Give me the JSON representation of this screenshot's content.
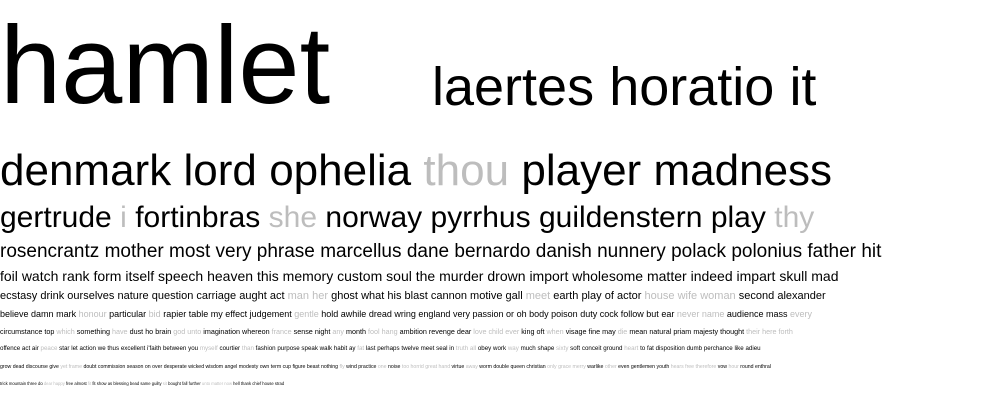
{
  "colors": {
    "dark": "#000000",
    "light": "#bdbdbd"
  },
  "rows": [
    {
      "fs": 110,
      "top": 2,
      "words": [
        {
          "t": "hamlet",
          "c": "dark"
        }
      ]
    },
    {
      "fs": 54,
      "top": 56,
      "left": 432,
      "words": [
        {
          "t": "laertes",
          "c": "dark"
        },
        {
          "t": "horatio",
          "c": "dark"
        },
        {
          "t": "it",
          "c": "dark"
        }
      ]
    },
    {
      "fs": 44,
      "top": 146,
      "words": [
        {
          "t": "denmark",
          "c": "dark"
        },
        {
          "t": "lord",
          "c": "dark"
        },
        {
          "t": "ophelia",
          "c": "dark"
        },
        {
          "t": "thou",
          "c": "light"
        },
        {
          "t": "player",
          "c": "dark"
        },
        {
          "t": "madness",
          "c": "dark"
        }
      ]
    },
    {
      "fs": 30,
      "top": 201,
      "words": [
        {
          "t": "gertrude",
          "c": "dark"
        },
        {
          "t": "i",
          "c": "light"
        },
        {
          "t": "fortinbras",
          "c": "dark"
        },
        {
          "t": "she",
          "c": "light"
        },
        {
          "t": "norway",
          "c": "dark"
        },
        {
          "t": "pyrrhus",
          "c": "dark"
        },
        {
          "t": "guildenstern",
          "c": "dark"
        },
        {
          "t": "play",
          "c": "dark"
        },
        {
          "t": "thy",
          "c": "light"
        }
      ]
    },
    {
      "fs": 19,
      "top": 241,
      "words": [
        {
          "t": "rosencrantz",
          "c": "dark"
        },
        {
          "t": "mother",
          "c": "dark"
        },
        {
          "t": "most",
          "c": "dark"
        },
        {
          "t": "very",
          "c": "dark"
        },
        {
          "t": "phrase",
          "c": "dark"
        },
        {
          "t": "marcellus",
          "c": "dark"
        },
        {
          "t": "dane",
          "c": "dark"
        },
        {
          "t": "bernardo",
          "c": "dark"
        },
        {
          "t": "danish",
          "c": "dark"
        },
        {
          "t": "nunnery",
          "c": "dark"
        },
        {
          "t": "polack",
          "c": "dark"
        },
        {
          "t": "polonius",
          "c": "dark"
        },
        {
          "t": "father",
          "c": "dark"
        },
        {
          "t": "hit",
          "c": "dark"
        }
      ]
    },
    {
      "fs": 14,
      "top": 268,
      "words": [
        {
          "t": "foil",
          "c": "dark"
        },
        {
          "t": "watch",
          "c": "dark"
        },
        {
          "t": "rank",
          "c": "dark"
        },
        {
          "t": "form",
          "c": "dark"
        },
        {
          "t": "itself",
          "c": "dark"
        },
        {
          "t": "speech",
          "c": "dark"
        },
        {
          "t": "heaven",
          "c": "dark"
        },
        {
          "t": "this",
          "c": "dark"
        },
        {
          "t": "memory",
          "c": "dark"
        },
        {
          "t": "custom",
          "c": "dark"
        },
        {
          "t": "soul",
          "c": "dark"
        },
        {
          "t": "the",
          "c": "dark"
        },
        {
          "t": "murder",
          "c": "dark"
        },
        {
          "t": "drown",
          "c": "dark"
        },
        {
          "t": "import",
          "c": "dark"
        },
        {
          "t": "wholesome",
          "c": "dark"
        },
        {
          "t": "matter",
          "c": "dark"
        },
        {
          "t": "indeed",
          "c": "dark"
        },
        {
          "t": "impart",
          "c": "dark"
        },
        {
          "t": "skull",
          "c": "dark"
        },
        {
          "t": "mad",
          "c": "dark"
        }
      ]
    },
    {
      "fs": 11,
      "top": 290,
      "words": [
        {
          "t": "ecstasy",
          "c": "dark"
        },
        {
          "t": "drink",
          "c": "dark"
        },
        {
          "t": "ourselves",
          "c": "dark"
        },
        {
          "t": "nature",
          "c": "dark"
        },
        {
          "t": "question",
          "c": "dark"
        },
        {
          "t": "carriage",
          "c": "dark"
        },
        {
          "t": "aught",
          "c": "dark"
        },
        {
          "t": "act",
          "c": "dark"
        },
        {
          "t": "man",
          "c": "light"
        },
        {
          "t": "her",
          "c": "light"
        },
        {
          "t": "ghost",
          "c": "dark"
        },
        {
          "t": "what",
          "c": "dark"
        },
        {
          "t": "his",
          "c": "dark"
        },
        {
          "t": "blast",
          "c": "dark"
        },
        {
          "t": "cannon",
          "c": "dark"
        },
        {
          "t": "motive",
          "c": "dark"
        },
        {
          "t": "gall",
          "c": "dark"
        },
        {
          "t": "meet",
          "c": "light"
        },
        {
          "t": "earth",
          "c": "dark"
        },
        {
          "t": "play",
          "c": "dark"
        },
        {
          "t": "of",
          "c": "dark"
        },
        {
          "t": "actor",
          "c": "dark"
        },
        {
          "t": "house",
          "c": "light"
        },
        {
          "t": "wife",
          "c": "light"
        },
        {
          "t": "woman",
          "c": "light"
        },
        {
          "t": "second",
          "c": "dark"
        },
        {
          "t": "alexander",
          "c": "dark"
        }
      ]
    },
    {
      "fs": 9,
      "top": 309,
      "words": [
        {
          "t": "believe",
          "c": "dark"
        },
        {
          "t": "damn",
          "c": "dark"
        },
        {
          "t": "mark",
          "c": "dark"
        },
        {
          "t": "honour",
          "c": "light"
        },
        {
          "t": "particular",
          "c": "dark"
        },
        {
          "t": "bid",
          "c": "light"
        },
        {
          "t": "rapier",
          "c": "dark"
        },
        {
          "t": "table",
          "c": "dark"
        },
        {
          "t": "my",
          "c": "dark"
        },
        {
          "t": "effect",
          "c": "dark"
        },
        {
          "t": "judgement",
          "c": "dark"
        },
        {
          "t": "gentle",
          "c": "light"
        },
        {
          "t": "hold",
          "c": "dark"
        },
        {
          "t": "awhile",
          "c": "dark"
        },
        {
          "t": "dread",
          "c": "dark"
        },
        {
          "t": "wring",
          "c": "dark"
        },
        {
          "t": "england",
          "c": "dark"
        },
        {
          "t": "very",
          "c": "dark"
        },
        {
          "t": "passion",
          "c": "dark"
        },
        {
          "t": "or",
          "c": "dark"
        },
        {
          "t": "oh",
          "c": "dark"
        },
        {
          "t": "body",
          "c": "dark"
        },
        {
          "t": "poison",
          "c": "dark"
        },
        {
          "t": "duty",
          "c": "dark"
        },
        {
          "t": "cock",
          "c": "dark"
        },
        {
          "t": "follow",
          "c": "dark"
        },
        {
          "t": "but",
          "c": "dark"
        },
        {
          "t": "ear",
          "c": "dark"
        },
        {
          "t": "never",
          "c": "light"
        },
        {
          "t": "name",
          "c": "light"
        },
        {
          "t": "audience",
          "c": "dark"
        },
        {
          "t": "mass",
          "c": "dark"
        },
        {
          "t": "every",
          "c": "light"
        }
      ]
    },
    {
      "fs": 7.2,
      "top": 327,
      "words": [
        {
          "t": "circumstance",
          "c": "dark"
        },
        {
          "t": "top",
          "c": "dark"
        },
        {
          "t": "which",
          "c": "light"
        },
        {
          "t": "something",
          "c": "dark"
        },
        {
          "t": "have",
          "c": "light"
        },
        {
          "t": "dust",
          "c": "dark"
        },
        {
          "t": "ho",
          "c": "dark"
        },
        {
          "t": "brain",
          "c": "dark"
        },
        {
          "t": "god",
          "c": "light"
        },
        {
          "t": "unto",
          "c": "light"
        },
        {
          "t": "imagination",
          "c": "dark"
        },
        {
          "t": "whereon",
          "c": "dark"
        },
        {
          "t": "france",
          "c": "light"
        },
        {
          "t": "sense",
          "c": "dark"
        },
        {
          "t": "night",
          "c": "dark"
        },
        {
          "t": "any",
          "c": "light"
        },
        {
          "t": "month",
          "c": "dark"
        },
        {
          "t": "fool",
          "c": "light"
        },
        {
          "t": "hang",
          "c": "light"
        },
        {
          "t": "ambition",
          "c": "dark"
        },
        {
          "t": "revenge",
          "c": "dark"
        },
        {
          "t": "dear",
          "c": "dark"
        },
        {
          "t": "love",
          "c": "light"
        },
        {
          "t": "child",
          "c": "light"
        },
        {
          "t": "ever",
          "c": "light"
        },
        {
          "t": "king",
          "c": "dark"
        },
        {
          "t": "oft",
          "c": "dark"
        },
        {
          "t": "when",
          "c": "light"
        },
        {
          "t": "visage",
          "c": "dark"
        },
        {
          "t": "fine",
          "c": "dark"
        },
        {
          "t": "may",
          "c": "dark"
        },
        {
          "t": "die",
          "c": "light"
        },
        {
          "t": "mean",
          "c": "dark"
        },
        {
          "t": "natural",
          "c": "dark"
        },
        {
          "t": "priam",
          "c": "dark"
        },
        {
          "t": "majesty",
          "c": "dark"
        },
        {
          "t": "thought",
          "c": "dark"
        },
        {
          "t": "their",
          "c": "light"
        },
        {
          "t": "here",
          "c": "light"
        },
        {
          "t": "forth",
          "c": "light"
        }
      ]
    },
    {
      "fs": 6.2,
      "top": 345,
      "words": [
        {
          "t": "offence",
          "c": "dark"
        },
        {
          "t": "act",
          "c": "dark"
        },
        {
          "t": "air",
          "c": "dark"
        },
        {
          "t": "peace",
          "c": "light"
        },
        {
          "t": "star",
          "c": "dark"
        },
        {
          "t": "let",
          "c": "dark"
        },
        {
          "t": "action",
          "c": "dark"
        },
        {
          "t": "we",
          "c": "dark"
        },
        {
          "t": "thus",
          "c": "dark"
        },
        {
          "t": "excellent",
          "c": "dark"
        },
        {
          "t": "i'faith",
          "c": "dark"
        },
        {
          "t": "between",
          "c": "dark"
        },
        {
          "t": "you",
          "c": "dark"
        },
        {
          "t": "myself",
          "c": "light"
        },
        {
          "t": "courtier",
          "c": "dark"
        },
        {
          "t": "than",
          "c": "light"
        },
        {
          "t": "fashion",
          "c": "dark"
        },
        {
          "t": "purpose",
          "c": "dark"
        },
        {
          "t": "speak",
          "c": "dark"
        },
        {
          "t": "walk",
          "c": "dark"
        },
        {
          "t": "habit",
          "c": "dark"
        },
        {
          "t": "ay",
          "c": "dark"
        },
        {
          "t": "fat",
          "c": "light"
        },
        {
          "t": "last",
          "c": "dark"
        },
        {
          "t": "perhaps",
          "c": "dark"
        },
        {
          "t": "twelve",
          "c": "dark"
        },
        {
          "t": "meet",
          "c": "dark"
        },
        {
          "t": "seal",
          "c": "dark"
        },
        {
          "t": "in",
          "c": "dark"
        },
        {
          "t": "truth",
          "c": "light"
        },
        {
          "t": "all",
          "c": "light"
        },
        {
          "t": "obey",
          "c": "dark"
        },
        {
          "t": "work",
          "c": "dark"
        },
        {
          "t": "way",
          "c": "light"
        },
        {
          "t": "much",
          "c": "dark"
        },
        {
          "t": "shape",
          "c": "dark"
        },
        {
          "t": "sixty",
          "c": "light"
        },
        {
          "t": "soft",
          "c": "dark"
        },
        {
          "t": "conceit",
          "c": "dark"
        },
        {
          "t": "ground",
          "c": "dark"
        },
        {
          "t": "heart",
          "c": "light"
        },
        {
          "t": "to",
          "c": "dark"
        },
        {
          "t": "fat",
          "c": "dark"
        },
        {
          "t": "disposition",
          "c": "dark"
        },
        {
          "t": "dumb",
          "c": "dark"
        },
        {
          "t": "perchance",
          "c": "dark"
        },
        {
          "t": "like",
          "c": "dark"
        },
        {
          "t": "adieu",
          "c": "dark"
        }
      ]
    },
    {
      "fs": 5.2,
      "top": 364,
      "words": [
        {
          "t": "grow",
          "c": "dark"
        },
        {
          "t": "dead",
          "c": "dark"
        },
        {
          "t": "discourse",
          "c": "dark"
        },
        {
          "t": "give",
          "c": "dark"
        },
        {
          "t": "yet",
          "c": "light"
        },
        {
          "t": "frame",
          "c": "light"
        },
        {
          "t": "doubt",
          "c": "dark"
        },
        {
          "t": "commission",
          "c": "dark"
        },
        {
          "t": "season",
          "c": "dark"
        },
        {
          "t": "on",
          "c": "dark"
        },
        {
          "t": "over",
          "c": "dark"
        },
        {
          "t": "desperate",
          "c": "dark"
        },
        {
          "t": "wicked",
          "c": "dark"
        },
        {
          "t": "wisdom",
          "c": "dark"
        },
        {
          "t": "angel",
          "c": "dark"
        },
        {
          "t": "modesty",
          "c": "dark"
        },
        {
          "t": "own",
          "c": "dark"
        },
        {
          "t": "term",
          "c": "dark"
        },
        {
          "t": "cup",
          "c": "dark"
        },
        {
          "t": "figure",
          "c": "dark"
        },
        {
          "t": "beast",
          "c": "dark"
        },
        {
          "t": "nothing",
          "c": "dark"
        },
        {
          "t": "fly",
          "c": "light"
        },
        {
          "t": "wind",
          "c": "dark"
        },
        {
          "t": "practice",
          "c": "dark"
        },
        {
          "t": "one",
          "c": "light"
        },
        {
          "t": "noise",
          "c": "dark"
        },
        {
          "t": "too",
          "c": "light"
        },
        {
          "t": "horrid",
          "c": "light"
        },
        {
          "t": "great",
          "c": "light"
        },
        {
          "t": "hand",
          "c": "light"
        },
        {
          "t": "virtue",
          "c": "dark"
        },
        {
          "t": "away",
          "c": "light"
        },
        {
          "t": "worm",
          "c": "dark"
        },
        {
          "t": "double",
          "c": "dark"
        },
        {
          "t": "queen",
          "c": "dark"
        },
        {
          "t": "christian",
          "c": "dark"
        },
        {
          "t": "only",
          "c": "light"
        },
        {
          "t": "grace",
          "c": "light"
        },
        {
          "t": "merry",
          "c": "light"
        },
        {
          "t": "warlike",
          "c": "dark"
        },
        {
          "t": "other",
          "c": "light"
        },
        {
          "t": "even",
          "c": "dark"
        },
        {
          "t": "gentlemen",
          "c": "dark"
        },
        {
          "t": "youth",
          "c": "dark"
        },
        {
          "t": "hears",
          "c": "light"
        },
        {
          "t": "free",
          "c": "light"
        },
        {
          "t": "therefore",
          "c": "light"
        },
        {
          "t": "vow",
          "c": "dark"
        },
        {
          "t": "hour",
          "c": "light"
        },
        {
          "t": "round",
          "c": "dark"
        },
        {
          "t": "enthral",
          "c": "dark"
        }
      ]
    },
    {
      "fs": 4.2,
      "top": 381,
      "words": [
        {
          "t": "trick",
          "c": "dark"
        },
        {
          "t": "mountain",
          "c": "dark"
        },
        {
          "t": "three",
          "c": "dark"
        },
        {
          "t": "do",
          "c": "dark"
        },
        {
          "t": "dear",
          "c": "light"
        },
        {
          "t": "happy",
          "c": "light"
        },
        {
          "t": "free",
          "c": "dark"
        },
        {
          "t": "almost",
          "c": "dark"
        },
        {
          "t": "fit",
          "c": "light"
        },
        {
          "t": "fit",
          "c": "dark"
        },
        {
          "t": "show",
          "c": "dark"
        },
        {
          "t": "as",
          "c": "dark"
        },
        {
          "t": "blessing",
          "c": "dark"
        },
        {
          "t": "bead",
          "c": "dark"
        },
        {
          "t": "same",
          "c": "dark"
        },
        {
          "t": "guilty",
          "c": "dark"
        },
        {
          "t": "sit",
          "c": "light"
        },
        {
          "t": "bought",
          "c": "dark"
        },
        {
          "t": "fall",
          "c": "dark"
        },
        {
          "t": "further",
          "c": "dark"
        },
        {
          "t": "unto",
          "c": "light"
        },
        {
          "t": "matter",
          "c": "light"
        },
        {
          "t": "now",
          "c": "light"
        },
        {
          "t": "hell",
          "c": "dark"
        },
        {
          "t": "thank",
          "c": "dark"
        },
        {
          "t": "chief",
          "c": "dark"
        },
        {
          "t": "house",
          "c": "dark"
        },
        {
          "t": "strad",
          "c": "dark"
        }
      ]
    }
  ]
}
